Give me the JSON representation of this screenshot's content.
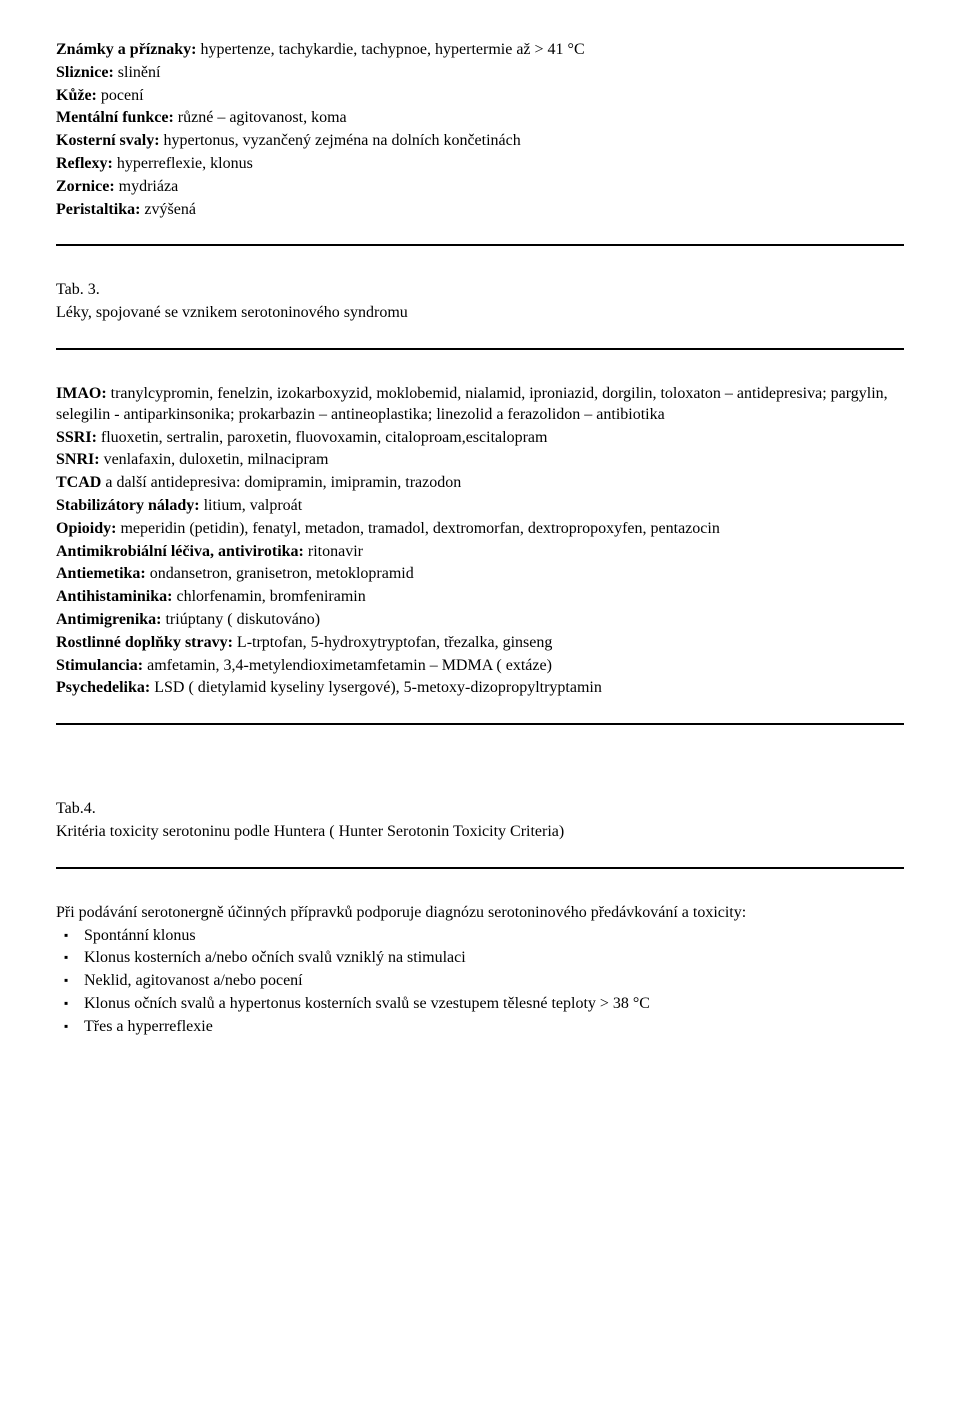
{
  "block1": {
    "lines": [
      {
        "label": "Známky a příznaky:",
        "text": " hypertenze, tachykardie, tachypnoe, hypertermie až  > 41 °C"
      },
      {
        "label": "Sliznice:",
        "text": " slinění"
      },
      {
        "label": "Kůže:",
        "text": " pocení"
      },
      {
        "label": "Mentální funkce:",
        "text": " různé – agitovanost, koma"
      },
      {
        "label": "Kosterní svaly:",
        "text": " hypertonus, vyzančený zejména na dolních končetinách"
      },
      {
        "label": "Reflexy:",
        "text": " hyperreflexie, klonus"
      },
      {
        "label": "Zornice:",
        "text": " mydriáza"
      },
      {
        "label": "Peristaltika:",
        "text": " zvýšená"
      }
    ]
  },
  "tab3": {
    "heading": "Tab. 3.",
    "subheading": "Léky, spojované se vznikem serotoninového syndromu"
  },
  "block2": {
    "lines": [
      {
        "label": "IMAO:",
        "text": " tranylcypromin, fenelzin, izokarboxyzid, moklobemid, nialamid, iproniazid, dorgilin, toloxaton – antidepresiva; pargylin, selegilin - antiparkinsonika; prokarbazin – antineoplastika; linezolid a ferazolidon – antibiotika"
      },
      {
        "label": "SSRI:",
        "text": " fluoxetin, sertralin, paroxetin, fluovoxamin, citaloproam,escitalopram"
      },
      {
        "label": "SNRI:",
        "text": " venlafaxin, duloxetin, milnacipram"
      },
      {
        "label": "TCAD",
        "text": " a další antidepresiva: domipramin, imipramin, trazodon"
      },
      {
        "label": "Stabilizátory nálady:",
        "text": " litium, valproát"
      },
      {
        "label": "Opioidy:",
        "text": " meperidin (petidin), fenatyl, metadon, tramadol, dextromorfan, dextropropoxyfen, pentazocin"
      },
      {
        "label": "Antimikrobiální léčiva, antivirotika:",
        "text": " ritonavir"
      },
      {
        "label": "Antiemetika:",
        "text": " ondansetron, granisetron, metoklopramid"
      },
      {
        "label": "Antihistaminika:",
        "text": " chlorfenamin, bromfeniramin"
      },
      {
        "label": "Antimigrenika:",
        "text": " triúptany ( diskutováno)"
      },
      {
        "label": "Rostlinné doplňky stravy:",
        "text": "  L-trptofan, 5-hydroxytryptofan, třezalka, ginseng"
      },
      {
        "label": "Stimulancia:",
        "text": " amfetamin, 3,4-metylendioximetamfetamin – MDMA ( extáze)"
      },
      {
        "label": "Psychedelika:",
        "text": " LSD ( dietylamid kyseliny lysergové), 5-metoxy-dizopropyltryptamin"
      }
    ]
  },
  "tab4": {
    "heading": "Tab.4.",
    "subheading": "Kritéria toxicity serotoninu podle Huntera ( Hunter Serotonin Toxicity Criteria)"
  },
  "block3": {
    "intro": "Při podávání serotonergně účinných přípravků podporuje diagnózu serotoninového předávkování a toxicity:",
    "items": [
      "Spontánní klonus",
      "Klonus kosterních a/nebo očních svalů vzniklý na stimulaci",
      "Neklid, agitovanost a/nebo pocení",
      "Klonus očních svalů a hypertonus kosterních svalů se vzestupem tělesné teploty > 38 °C",
      "Třes a hyperreflexie"
    ]
  }
}
